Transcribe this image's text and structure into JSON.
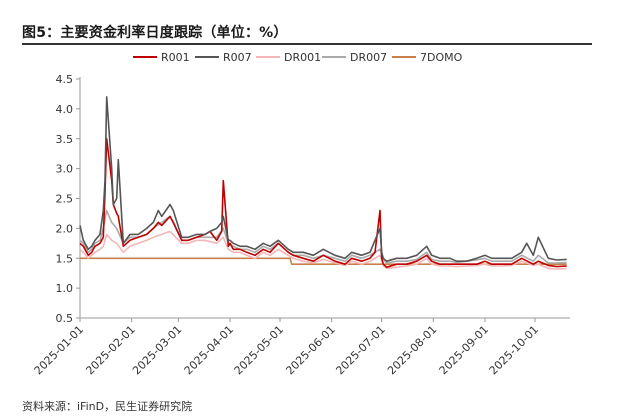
{
  "header": {
    "title": "图5：主要资金利率日度跟踪（单位：%）"
  },
  "footer": {
    "source": "资料来源：iFinD，民生证券研究院"
  },
  "chart_data": {
    "type": "line",
    "title": "图5：主要资金利率日度跟踪（单位：%）",
    "xlabel": "",
    "ylabel": "",
    "ylim": [
      0.5,
      4.5
    ],
    "yticks": [
      "0.5",
      "1.0",
      "1.5",
      "2.0",
      "2.5",
      "3.0",
      "3.5",
      "4.0",
      "4.5"
    ],
    "xlim": [
      "2025-01-01",
      "2025-10-22"
    ],
    "xticks": [
      "2025-01-01",
      "2025-02-01",
      "2025-03-01",
      "2025-04-01",
      "2025-05-01",
      "2025-06-01",
      "2025-07-01",
      "2025-08-01",
      "2025-09-01",
      "2025-10-01"
    ],
    "grid": false,
    "legend": "top",
    "series": [
      {
        "name": "R001",
        "color": "#c00000",
        "x": [
          "2025-01-01",
          "2025-01-03",
          "2025-01-06",
          "2025-01-08",
          "2025-01-10",
          "2025-01-13",
          "2025-01-15",
          "2025-01-16",
          "2025-01-17",
          "2025-01-20",
          "2025-01-21",
          "2025-01-23",
          "2025-01-24",
          "2025-01-27",
          "2025-01-31",
          "2025-02-05",
          "2025-02-10",
          "2025-02-14",
          "2025-02-17",
          "2025-02-19",
          "2025-02-24",
          "2025-02-26",
          "2025-03-03",
          "2025-03-07",
          "2025-03-12",
          "2025-03-17",
          "2025-03-20",
          "2025-03-24",
          "2025-03-27",
          "2025-03-28",
          "2025-03-31",
          "2025-04-01",
          "2025-04-03",
          "2025-04-07",
          "2025-04-11",
          "2025-04-16",
          "2025-04-21",
          "2025-04-25",
          "2025-04-30",
          "2025-05-06",
          "2025-05-09",
          "2025-05-15",
          "2025-05-21",
          "2025-05-27",
          "2025-06-03",
          "2025-06-09",
          "2025-06-13",
          "2025-06-19",
          "2025-06-24",
          "2025-06-27",
          "2025-06-30",
          "2025-07-01",
          "2025-07-02",
          "2025-07-04",
          "2025-07-10",
          "2025-07-16",
          "2025-07-22",
          "2025-07-28",
          "2025-07-31",
          "2025-08-05",
          "2025-08-11",
          "2025-08-15",
          "2025-08-21",
          "2025-08-27",
          "2025-09-01",
          "2025-09-05",
          "2025-09-11",
          "2025-09-17",
          "2025-09-23",
          "2025-09-30",
          "2025-10-03",
          "2025-10-09",
          "2025-10-14",
          "2025-10-20"
        ],
        "values": [
          1.75,
          1.7,
          1.55,
          1.6,
          1.7,
          1.75,
          1.85,
          2.6,
          3.5,
          2.8,
          2.4,
          2.25,
          2.2,
          1.7,
          1.8,
          1.85,
          1.9,
          2.0,
          2.1,
          2.05,
          2.2,
          2.1,
          1.8,
          1.8,
          1.85,
          1.9,
          1.95,
          1.8,
          1.95,
          2.8,
          1.7,
          1.75,
          1.65,
          1.65,
          1.6,
          1.55,
          1.65,
          1.6,
          1.75,
          1.6,
          1.55,
          1.5,
          1.45,
          1.55,
          1.45,
          1.4,
          1.5,
          1.45,
          1.5,
          1.6,
          2.3,
          1.5,
          1.4,
          1.35,
          1.4,
          1.4,
          1.45,
          1.55,
          1.45,
          1.4,
          1.4,
          1.4,
          1.4,
          1.4,
          1.45,
          1.4,
          1.4,
          1.4,
          1.5,
          1.4,
          1.45,
          1.38,
          1.36,
          1.37
        ]
      },
      {
        "name": "R007",
        "color": "#555555",
        "x": [
          "2025-01-01",
          "2025-01-03",
          "2025-01-06",
          "2025-01-08",
          "2025-01-10",
          "2025-01-13",
          "2025-01-15",
          "2025-01-16",
          "2025-01-17",
          "2025-01-20",
          "2025-01-21",
          "2025-01-23",
          "2025-01-24",
          "2025-01-27",
          "2025-01-31",
          "2025-02-05",
          "2025-02-10",
          "2025-02-14",
          "2025-02-17",
          "2025-02-19",
          "2025-02-24",
          "2025-02-26",
          "2025-03-03",
          "2025-03-07",
          "2025-03-12",
          "2025-03-17",
          "2025-03-20",
          "2025-03-24",
          "2025-03-27",
          "2025-03-28",
          "2025-03-31",
          "2025-04-01",
          "2025-04-03",
          "2025-04-07",
          "2025-04-11",
          "2025-04-16",
          "2025-04-21",
          "2025-04-25",
          "2025-04-30",
          "2025-05-06",
          "2025-05-09",
          "2025-05-15",
          "2025-05-21",
          "2025-05-27",
          "2025-06-03",
          "2025-06-09",
          "2025-06-13",
          "2025-06-19",
          "2025-06-24",
          "2025-06-27",
          "2025-06-30",
          "2025-07-01",
          "2025-07-02",
          "2025-07-04",
          "2025-07-10",
          "2025-07-16",
          "2025-07-22",
          "2025-07-28",
          "2025-07-31",
          "2025-08-05",
          "2025-08-11",
          "2025-08-15",
          "2025-08-21",
          "2025-08-27",
          "2025-09-01",
          "2025-09-05",
          "2025-09-11",
          "2025-09-17",
          "2025-09-23",
          "2025-09-26",
          "2025-09-30",
          "2025-10-03",
          "2025-10-09",
          "2025-10-14",
          "2025-10-20"
        ],
        "values": [
          2.05,
          1.8,
          1.65,
          1.7,
          1.8,
          1.9,
          2.3,
          2.8,
          4.2,
          3.0,
          2.4,
          2.5,
          3.15,
          1.75,
          1.9,
          1.9,
          2.0,
          2.1,
          2.3,
          2.2,
          2.4,
          2.3,
          1.85,
          1.85,
          1.9,
          1.9,
          1.95,
          2.0,
          2.1,
          2.2,
          1.8,
          1.8,
          1.75,
          1.7,
          1.7,
          1.65,
          1.75,
          1.7,
          1.8,
          1.65,
          1.6,
          1.6,
          1.55,
          1.65,
          1.55,
          1.5,
          1.6,
          1.55,
          1.6,
          1.8,
          2.0,
          1.6,
          1.5,
          1.45,
          1.5,
          1.5,
          1.55,
          1.7,
          1.55,
          1.5,
          1.5,
          1.45,
          1.45,
          1.5,
          1.55,
          1.5,
          1.5,
          1.5,
          1.6,
          1.75,
          1.55,
          1.85,
          1.5,
          1.47,
          1.48
        ]
      },
      {
        "name": "DR001",
        "color": "#f4b6b6",
        "x": [
          "2025-01-01",
          "2025-01-03",
          "2025-01-06",
          "2025-01-08",
          "2025-01-10",
          "2025-01-13",
          "2025-01-15",
          "2025-01-17",
          "2025-01-20",
          "2025-01-23",
          "2025-01-27",
          "2025-01-31",
          "2025-02-05",
          "2025-02-10",
          "2025-02-14",
          "2025-02-19",
          "2025-02-24",
          "2025-03-03",
          "2025-03-07",
          "2025-03-12",
          "2025-03-17",
          "2025-03-24",
          "2025-03-28",
          "2025-03-31",
          "2025-04-03",
          "2025-04-07",
          "2025-04-11",
          "2025-04-16",
          "2025-04-21",
          "2025-04-25",
          "2025-04-30",
          "2025-05-06",
          "2025-05-09",
          "2025-05-15",
          "2025-05-21",
          "2025-05-27",
          "2025-06-03",
          "2025-06-09",
          "2025-06-13",
          "2025-06-19",
          "2025-06-24",
          "2025-06-30",
          "2025-07-02",
          "2025-07-04",
          "2025-07-10",
          "2025-07-16",
          "2025-07-22",
          "2025-07-28",
          "2025-07-31",
          "2025-08-05",
          "2025-08-11",
          "2025-08-15",
          "2025-08-21",
          "2025-08-27",
          "2025-09-01",
          "2025-09-05",
          "2025-09-11",
          "2025-09-17",
          "2025-09-23",
          "2025-09-30",
          "2025-10-03",
          "2025-10-09",
          "2025-10-14",
          "2025-10-20"
        ],
        "values": [
          1.65,
          1.6,
          1.5,
          1.55,
          1.6,
          1.65,
          1.7,
          1.9,
          1.8,
          1.75,
          1.6,
          1.7,
          1.75,
          1.8,
          1.85,
          1.9,
          1.95,
          1.75,
          1.75,
          1.8,
          1.8,
          1.75,
          1.85,
          1.65,
          1.6,
          1.6,
          1.55,
          1.5,
          1.6,
          1.55,
          1.65,
          1.55,
          1.5,
          1.45,
          1.42,
          1.48,
          1.42,
          1.38,
          1.45,
          1.4,
          1.45,
          1.55,
          1.38,
          1.33,
          1.35,
          1.37,
          1.4,
          1.5,
          1.4,
          1.37,
          1.37,
          1.36,
          1.37,
          1.38,
          1.4,
          1.37,
          1.37,
          1.38,
          1.45,
          1.38,
          1.4,
          1.33,
          1.32,
          1.33
        ]
      },
      {
        "name": "DR007",
        "color": "#aaaaaa",
        "x": [
          "2025-01-01",
          "2025-01-03",
          "2025-01-06",
          "2025-01-08",
          "2025-01-10",
          "2025-01-13",
          "2025-01-15",
          "2025-01-17",
          "2025-01-20",
          "2025-01-23",
          "2025-01-27",
          "2025-01-31",
          "2025-02-05",
          "2025-02-10",
          "2025-02-14",
          "2025-02-19",
          "2025-02-24",
          "2025-03-03",
          "2025-03-07",
          "2025-03-12",
          "2025-03-17",
          "2025-03-24",
          "2025-03-28",
          "2025-03-31",
          "2025-04-03",
          "2025-04-07",
          "2025-04-11",
          "2025-04-16",
          "2025-04-21",
          "2025-04-25",
          "2025-04-30",
          "2025-05-06",
          "2025-05-09",
          "2025-05-15",
          "2025-05-21",
          "2025-05-27",
          "2025-06-03",
          "2025-06-09",
          "2025-06-13",
          "2025-06-19",
          "2025-06-24",
          "2025-06-30",
          "2025-07-02",
          "2025-07-04",
          "2025-07-10",
          "2025-07-16",
          "2025-07-22",
          "2025-07-28",
          "2025-07-31",
          "2025-08-05",
          "2025-08-11",
          "2025-08-15",
          "2025-08-21",
          "2025-08-27",
          "2025-09-01",
          "2025-09-05",
          "2025-09-11",
          "2025-09-17",
          "2025-09-23",
          "2025-09-30",
          "2025-10-03",
          "2025-10-09",
          "2025-10-14",
          "2025-10-20"
        ],
        "values": [
          1.8,
          1.75,
          1.6,
          1.65,
          1.75,
          1.8,
          2.0,
          2.3,
          2.1,
          2.0,
          1.75,
          1.85,
          1.85,
          1.9,
          2.0,
          2.1,
          2.2,
          1.8,
          1.8,
          1.85,
          1.85,
          1.85,
          2.0,
          1.75,
          1.7,
          1.65,
          1.65,
          1.6,
          1.7,
          1.65,
          1.75,
          1.6,
          1.55,
          1.55,
          1.5,
          1.55,
          1.5,
          1.45,
          1.55,
          1.5,
          1.55,
          1.65,
          1.48,
          1.42,
          1.45,
          1.45,
          1.48,
          1.6,
          1.48,
          1.45,
          1.45,
          1.43,
          1.45,
          1.47,
          1.5,
          1.45,
          1.45,
          1.45,
          1.55,
          1.45,
          1.55,
          1.42,
          1.42,
          1.43
        ]
      },
      {
        "name": "7DOMO",
        "color": "#c87f4a",
        "x": [
          "2025-01-01",
          "2025-05-07",
          "2025-05-08",
          "2025-10-20"
        ],
        "values": [
          1.5,
          1.5,
          1.4,
          1.4
        ]
      }
    ]
  }
}
